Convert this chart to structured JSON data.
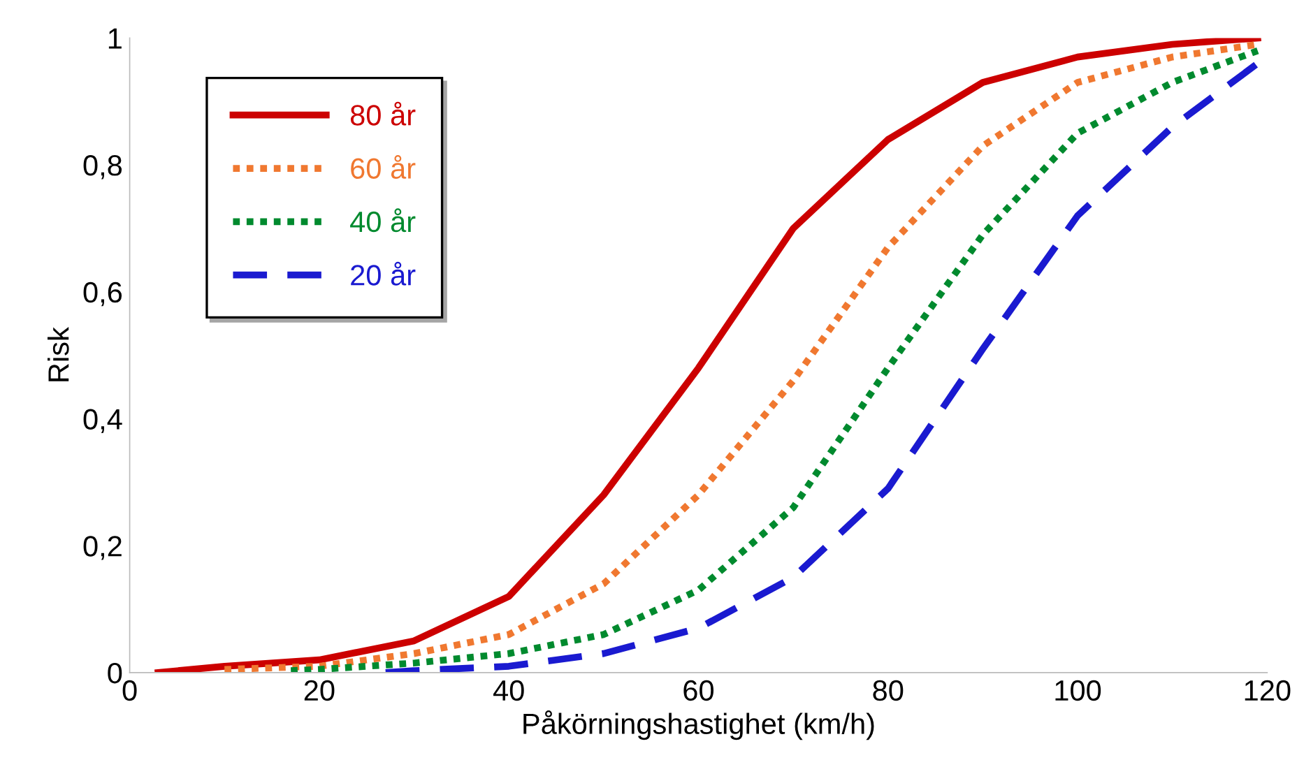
{
  "chart_data": {
    "type": "line",
    "xlabel": "Påkörningshastighet (km/h)",
    "ylabel": "Risk",
    "xlim": [
      0,
      120
    ],
    "ylim": [
      0,
      1
    ],
    "xticks": [
      0,
      20,
      40,
      60,
      80,
      100,
      120
    ],
    "yticks": [
      0,
      {
        "value": 0.2,
        "label": "0,2"
      },
      {
        "value": 0.4,
        "label": "0,4"
      },
      {
        "value": 0.6,
        "label": "0,6"
      },
      {
        "value": 0.8,
        "label": "0,8"
      },
      1
    ],
    "grid": false,
    "legend": "top left",
    "marker": "none",
    "series": [
      {
        "name": "80 år",
        "color": "#cc0000",
        "line_style": "solid",
        "x": [
          3,
          10,
          20,
          30,
          40,
          50,
          60,
          70,
          80,
          90,
          100,
          110,
          119
        ],
        "values": [
          0,
          0.01,
          0.02,
          0.05,
          0.12,
          0.28,
          0.48,
          0.7,
          0.84,
          0.93,
          0.97,
          0.99,
          1.0
        ]
      },
      {
        "name": "60 år",
        "color": "#f07830",
        "line_style": "dotted",
        "x": [
          10,
          20,
          30,
          40,
          50,
          60,
          70,
          80,
          90,
          100,
          110,
          119
        ],
        "values": [
          0.005,
          0.01,
          0.03,
          0.06,
          0.14,
          0.28,
          0.46,
          0.67,
          0.83,
          0.93,
          0.97,
          0.99
        ]
      },
      {
        "name": "40 år",
        "color": "#008a2e",
        "line_style": "dotted",
        "x": [
          17,
          20,
          30,
          40,
          50,
          60,
          70,
          80,
          90,
          100,
          110,
          119
        ],
        "values": [
          0.003,
          0.005,
          0.015,
          0.03,
          0.06,
          0.13,
          0.26,
          0.48,
          0.69,
          0.85,
          0.93,
          0.98
        ]
      },
      {
        "name": "20 år",
        "color": "#1a1ad0",
        "line_style": "dashed",
        "x": [
          27,
          30,
          40,
          50,
          60,
          70,
          80,
          90,
          100,
          110,
          119
        ],
        "values": [
          0,
          0.003,
          0.01,
          0.03,
          0.07,
          0.15,
          0.29,
          0.51,
          0.72,
          0.86,
          0.96
        ]
      }
    ]
  }
}
